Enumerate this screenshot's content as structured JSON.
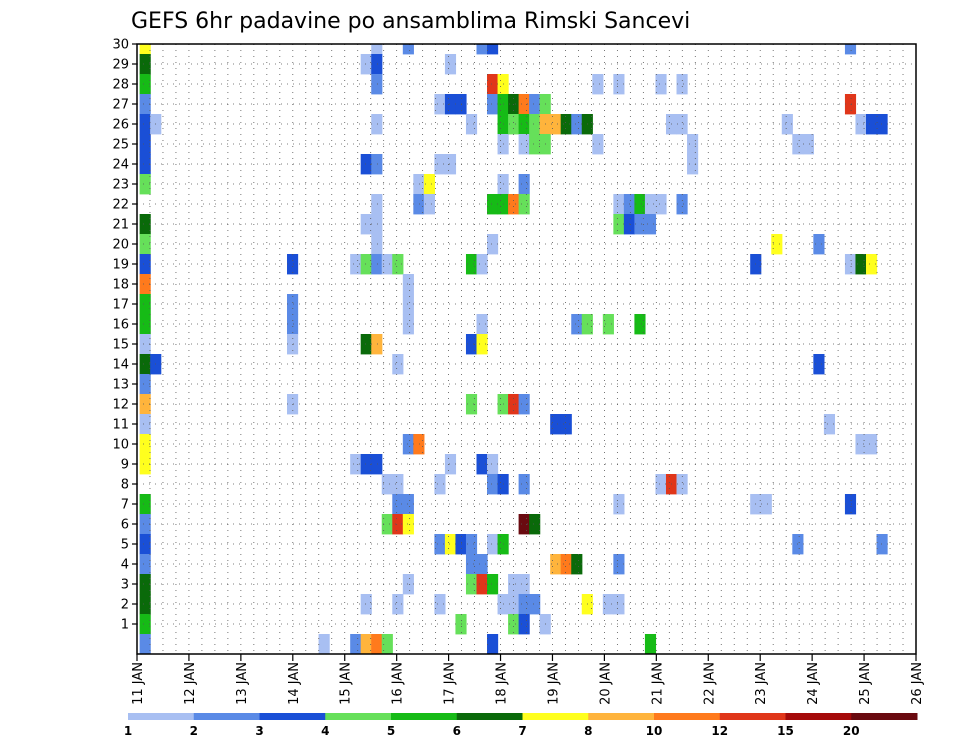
{
  "chart_data": {
    "type": "heatmap",
    "title": "GEFS 6hr padavine po ansamblima Rimski Sancevi",
    "xlabel": "",
    "ylabel": "",
    "x_ticks": [
      "11 JAN",
      "12 JAN",
      "13 JAN",
      "14 JAN",
      "15 JAN",
      "16 JAN",
      "17 JAN",
      "18 JAN",
      "19 JAN",
      "20 JAN",
      "21 JAN",
      "22 JAN",
      "23 JAN",
      "24 JAN",
      "25 JAN",
      "26 JAN"
    ],
    "x_range_days": [
      0,
      15
    ],
    "y_ticks": [
      1,
      2,
      3,
      4,
      5,
      6,
      7,
      8,
      9,
      10,
      11,
      12,
      13,
      14,
      15,
      16,
      17,
      18,
      19,
      20,
      21,
      22,
      23,
      24,
      25,
      26,
      27,
      28,
      29,
      30
    ],
    "y_range": [
      0,
      30
    ],
    "grid": "dotted",
    "legend_position": "bottom",
    "colorbar": {
      "bounds": [
        1,
        2,
        3,
        4,
        5,
        6,
        7,
        8,
        10,
        12,
        15,
        20,
        ""
      ],
      "labels": [
        "1",
        "2",
        "3",
        "4",
        "5",
        "6",
        "7",
        "8",
        "10",
        "12",
        "15",
        "20"
      ],
      "colors": [
        "#a8bff2",
        "#5a8ae6",
        "#1a4fd6",
        "#66e05a",
        "#16bb16",
        "#0a6a0a",
        "#ffff1e",
        "#ffb43c",
        "#ff7a1c",
        "#e0361a",
        "#a50a0a",
        "#6a0a10"
      ]
    },
    "cells": [
      [
        0,
        30,
        6
      ],
      [
        0,
        29,
        5
      ],
      [
        0,
        28,
        4
      ],
      [
        0,
        27,
        1
      ],
      [
        0,
        26,
        2
      ],
      [
        0,
        25,
        2
      ],
      [
        0,
        24,
        2
      ],
      [
        0,
        23,
        3
      ],
      [
        0,
        21,
        5
      ],
      [
        0,
        20,
        3
      ],
      [
        0,
        19,
        2
      ],
      [
        0,
        18,
        8
      ],
      [
        0,
        17,
        4
      ],
      [
        0,
        16,
        4
      ],
      [
        0,
        15,
        0
      ],
      [
        0,
        14,
        5
      ],
      [
        0,
        13,
        1
      ],
      [
        0,
        12,
        7
      ],
      [
        0,
        11,
        0
      ],
      [
        0,
        10,
        6
      ],
      [
        0,
        9,
        6
      ],
      [
        0,
        7,
        4
      ],
      [
        0,
        6,
        1
      ],
      [
        0,
        5,
        2
      ],
      [
        0,
        4,
        1
      ],
      [
        0,
        3,
        5
      ],
      [
        0,
        2,
        5
      ],
      [
        0,
        1,
        4
      ],
      [
        0,
        0,
        1
      ],
      [
        1,
        26,
        0
      ],
      [
        1,
        14,
        2
      ],
      [
        14,
        19,
        2
      ],
      [
        14,
        17,
        1
      ],
      [
        14,
        16,
        1
      ],
      [
        14,
        15,
        0
      ],
      [
        14,
        12,
        0
      ],
      [
        17,
        0,
        0
      ],
      [
        20,
        19,
        0
      ],
      [
        20,
        9,
        0
      ],
      [
        20,
        0,
        1
      ],
      [
        21,
        29,
        0
      ],
      [
        21,
        24,
        2
      ],
      [
        21,
        21,
        0
      ],
      [
        21,
        19,
        3
      ],
      [
        21,
        15,
        5
      ],
      [
        21,
        9,
        2
      ],
      [
        21,
        2,
        0
      ],
      [
        21,
        0,
        7
      ],
      [
        22,
        30,
        0
      ],
      [
        22,
        29,
        2
      ],
      [
        22,
        28,
        1
      ],
      [
        22,
        26,
        0
      ],
      [
        22,
        24,
        1
      ],
      [
        22,
        22,
        0
      ],
      [
        22,
        21,
        0
      ],
      [
        22,
        20,
        0
      ],
      [
        22,
        19,
        1
      ],
      [
        22,
        15,
        7
      ],
      [
        22,
        9,
        2
      ],
      [
        22,
        0,
        8
      ],
      [
        23,
        19,
        0
      ],
      [
        23,
        8,
        0
      ],
      [
        23,
        6,
        3
      ],
      [
        23,
        0,
        3
      ],
      [
        24,
        19,
        3
      ],
      [
        24,
        14,
        0
      ],
      [
        24,
        8,
        0
      ],
      [
        24,
        7,
        1
      ],
      [
        24,
        6,
        9
      ],
      [
        24,
        2,
        0
      ],
      [
        25,
        30,
        1
      ],
      [
        25,
        18,
        0
      ],
      [
        25,
        17,
        0
      ],
      [
        25,
        16,
        0
      ],
      [
        25,
        10,
        1
      ],
      [
        25,
        7,
        1
      ],
      [
        25,
        6,
        6
      ],
      [
        25,
        3,
        0
      ],
      [
        26,
        23,
        0
      ],
      [
        26,
        22,
        1
      ],
      [
        26,
        10,
        8
      ],
      [
        27,
        23,
        6
      ],
      [
        27,
        22,
        0
      ],
      [
        28,
        27,
        0
      ],
      [
        28,
        24,
        0
      ],
      [
        28,
        8,
        0
      ],
      [
        28,
        5,
        1
      ],
      [
        28,
        2,
        0
      ],
      [
        29,
        29,
        0
      ],
      [
        29,
        27,
        2
      ],
      [
        29,
        24,
        0
      ],
      [
        29,
        9,
        0
      ],
      [
        29,
        5,
        6
      ],
      [
        30,
        27,
        2
      ],
      [
        30,
        5,
        2
      ],
      [
        30,
        1,
        3
      ],
      [
        31,
        26,
        0
      ],
      [
        31,
        19,
        4
      ],
      [
        31,
        15,
        2
      ],
      [
        31,
        12,
        3
      ],
      [
        31,
        5,
        1
      ],
      [
        31,
        4,
        1
      ],
      [
        31,
        3,
        3
      ],
      [
        32,
        30,
        1
      ],
      [
        32,
        19,
        0
      ],
      [
        32,
        16,
        0
      ],
      [
        32,
        15,
        6
      ],
      [
        32,
        9,
        2
      ],
      [
        32,
        4,
        1
      ],
      [
        32,
        3,
        9
      ],
      [
        33,
        30,
        2
      ],
      [
        33,
        28,
        9
      ],
      [
        33,
        27,
        1
      ],
      [
        33,
        22,
        4
      ],
      [
        33,
        20,
        0
      ],
      [
        33,
        9,
        0
      ],
      [
        33,
        8,
        1
      ],
      [
        33,
        5,
        0
      ],
      [
        33,
        3,
        4
      ],
      [
        33,
        0,
        2
      ],
      [
        34,
        28,
        6
      ],
      [
        34,
        27,
        4
      ],
      [
        34,
        26,
        4
      ],
      [
        34,
        25,
        0
      ],
      [
        34,
        23,
        0
      ],
      [
        34,
        22,
        4
      ],
      [
        34,
        12,
        3
      ],
      [
        34,
        8,
        2
      ],
      [
        34,
        5,
        4
      ],
      [
        34,
        2,
        0
      ],
      [
        35,
        27,
        5
      ],
      [
        35,
        26,
        3
      ],
      [
        35,
        22,
        8
      ],
      [
        35,
        12,
        9
      ],
      [
        35,
        3,
        0
      ],
      [
        35,
        2,
        0
      ],
      [
        35,
        1,
        3
      ],
      [
        36,
        27,
        8
      ],
      [
        36,
        26,
        4
      ],
      [
        36,
        25,
        0
      ],
      [
        36,
        23,
        1
      ],
      [
        36,
        22,
        3
      ],
      [
        36,
        12,
        1
      ],
      [
        36,
        8,
        1
      ],
      [
        36,
        6,
        11
      ],
      [
        36,
        3,
        0
      ],
      [
        36,
        2,
        1
      ],
      [
        36,
        1,
        2
      ],
      [
        37,
        27,
        1
      ],
      [
        37,
        26,
        3
      ],
      [
        37,
        25,
        3
      ],
      [
        37,
        6,
        5
      ],
      [
        37,
        2,
        1
      ],
      [
        38,
        27,
        3
      ],
      [
        38,
        26,
        7
      ],
      [
        38,
        25,
        3
      ],
      [
        38,
        1,
        0
      ],
      [
        39,
        26,
        7
      ],
      [
        39,
        11,
        2
      ],
      [
        39,
        4,
        7
      ],
      [
        40,
        26,
        5
      ],
      [
        40,
        11,
        2
      ],
      [
        40,
        4,
        8
      ],
      [
        41,
        26,
        1
      ],
      [
        41,
        16,
        1
      ],
      [
        41,
        4,
        5
      ],
      [
        42,
        26,
        5
      ],
      [
        42,
        16,
        3
      ],
      [
        42,
        2,
        6
      ],
      [
        43,
        28,
        0
      ],
      [
        43,
        25,
        0
      ],
      [
        44,
        16,
        3
      ],
      [
        44,
        2,
        0
      ],
      [
        45,
        28,
        0
      ],
      [
        45,
        22,
        0
      ],
      [
        45,
        21,
        3
      ],
      [
        45,
        7,
        0
      ],
      [
        45,
        4,
        1
      ],
      [
        45,
        2,
        0
      ],
      [
        46,
        22,
        1
      ],
      [
        46,
        21,
        2
      ],
      [
        47,
        22,
        4
      ],
      [
        47,
        21,
        1
      ],
      [
        47,
        16,
        4
      ],
      [
        48,
        22,
        0
      ],
      [
        48,
        21,
        1
      ],
      [
        48,
        0,
        4
      ],
      [
        49,
        28,
        0
      ],
      [
        49,
        22,
        0
      ],
      [
        49,
        8,
        0
      ],
      [
        50,
        26,
        0
      ],
      [
        50,
        8,
        9
      ],
      [
        51,
        28,
        0
      ],
      [
        51,
        26,
        0
      ],
      [
        51,
        22,
        1
      ],
      [
        51,
        8,
        0
      ],
      [
        52,
        25,
        0
      ],
      [
        52,
        24,
        0
      ],
      [
        58,
        7,
        0
      ],
      [
        58,
        19,
        2
      ],
      [
        59,
        7,
        0
      ],
      [
        60,
        20,
        6
      ],
      [
        61,
        26,
        0
      ],
      [
        62,
        25,
        0
      ],
      [
        62,
        5,
        1
      ],
      [
        63,
        25,
        0
      ],
      [
        64,
        20,
        1
      ],
      [
        64,
        14,
        2
      ],
      [
        65,
        11,
        0
      ],
      [
        67,
        30,
        1
      ],
      [
        67,
        27,
        9
      ],
      [
        67,
        19,
        0
      ],
      [
        67,
        7,
        2
      ],
      [
        68,
        26,
        0
      ],
      [
        68,
        19,
        5
      ],
      [
        68,
        10,
        0
      ],
      [
        69,
        26,
        2
      ],
      [
        69,
        19,
        6
      ],
      [
        69,
        10,
        0
      ],
      [
        70,
        26,
        2
      ],
      [
        70,
        5,
        1
      ]
    ]
  }
}
